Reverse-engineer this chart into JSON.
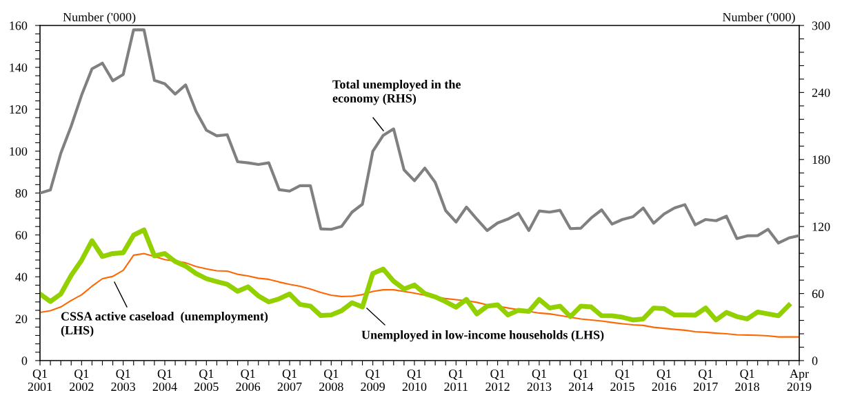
{
  "chart_data": {
    "type": "line",
    "ylabel": "Number ('000)",
    "y2label": "Number ('000)",
    "categories": [
      "Q1\n2001",
      null,
      null,
      null,
      "Q1\n2002",
      null,
      null,
      null,
      "Q1\n2003",
      null,
      null,
      null,
      "Q1\n2004",
      null,
      null,
      null,
      "Q1\n2005",
      null,
      null,
      null,
      "Q1\n2006",
      null,
      null,
      null,
      "Q1\n2007",
      null,
      null,
      null,
      "Q1\n2008",
      null,
      null,
      null,
      "Q1\n2009",
      null,
      null,
      null,
      "Q1\n2010",
      null,
      null,
      null,
      "Q1\n2011",
      null,
      null,
      null,
      "Q1\n2012",
      null,
      null,
      null,
      "Q1\n2013",
      null,
      null,
      null,
      "Q1\n2014",
      null,
      null,
      null,
      "Q1\n2015",
      null,
      null,
      null,
      "Q1\n2016",
      null,
      null,
      null,
      "Q1\n2017",
      null,
      null,
      null,
      "Q1\n2018",
      null,
      null,
      null,
      null,
      "Apr\n2019"
    ],
    "series": [
      {
        "name": "Total unemployed in the\neconomy (RHS)",
        "color": "#808080",
        "axis": "y2",
        "values": [
          149.9,
          152.8,
          185.6,
          209.9,
          237.6,
          261.2,
          266.3,
          250.5,
          256.1,
          296.1,
          296.1,
          250.9,
          247.8,
          238.6,
          246.8,
          223.2,
          206.2,
          201.2,
          202.2,
          178.0,
          177.0,
          175.6,
          177.0,
          153.0,
          151.7,
          156.5,
          156.5,
          117.9,
          117.5,
          120.1,
          132.9,
          140.0,
          187.3,
          201.6,
          207.4,
          170.8,
          161.0,
          172.3,
          159.5,
          134.3,
          124.0,
          137.4,
          126.7,
          116.4,
          123.2,
          126.7,
          131.8,
          116.4,
          133.9,
          132.9,
          134.5,
          118.1,
          118.5,
          127.7,
          134.9,
          122.2,
          126.3,
          128.7,
          136.6,
          123.0,
          131.2,
          136.6,
          139.6,
          121.5,
          126.3,
          125.2,
          129.2,
          109.2,
          111.7,
          111.9,
          117.5,
          105.2,
          109.8,
          111.9
        ]
      },
      {
        "name": "Unemployed in low-income households (LHS)",
        "color": "#92d000",
        "values": [
          31.8,
          28.2,
          31.8,
          40.7,
          47.9,
          57.2,
          49.7,
          51.1,
          51.5,
          59.9,
          62.4,
          50.0,
          51.1,
          47.3,
          45.1,
          41.6,
          39.1,
          37.7,
          36.4,
          33.1,
          35.2,
          30.9,
          28.0,
          29.5,
          31.8,
          26.8,
          26.0,
          21.5,
          21.8,
          23.8,
          27.6,
          25.6,
          41.6,
          43.7,
          37.9,
          34.2,
          36.1,
          32.0,
          30.4,
          28.1,
          25.5,
          29.2,
          22.3,
          26.0,
          26.6,
          21.8,
          24.0,
          23.5,
          29.2,
          25.1,
          26.0,
          21.0,
          26.0,
          25.6,
          21.4,
          21.4,
          20.7,
          19.4,
          19.9,
          25.1,
          24.8,
          21.8,
          21.8,
          21.7,
          25.1,
          19.4,
          23.0,
          21.0,
          19.9,
          23.2,
          22.3,
          21.4,
          26.4,
          null
        ]
      },
      {
        "name": "CSSA active caseload  (unemployment)\n(LHS)",
        "color": "#ff6600",
        "values": [
          23.0,
          23.8,
          25.6,
          28.7,
          31.4,
          35.5,
          39.1,
          40.2,
          43.1,
          50.3,
          51.1,
          49.7,
          48.2,
          47.5,
          46.7,
          44.9,
          43.8,
          42.9,
          42.7,
          41.2,
          40.4,
          39.3,
          38.8,
          37.5,
          36.4,
          35.5,
          34.2,
          32.5,
          31.2,
          30.6,
          30.7,
          31.5,
          33.0,
          33.8,
          33.8,
          33.0,
          32.2,
          31.2,
          30.6,
          29.6,
          29.1,
          28.6,
          27.8,
          26.6,
          26.0,
          25.1,
          24.3,
          23.5,
          22.7,
          22.3,
          21.5,
          20.7,
          19.9,
          19.4,
          18.9,
          18.2,
          17.6,
          17.1,
          16.8,
          15.9,
          15.4,
          14.9,
          14.5,
          13.8,
          13.5,
          13.1,
          12.8,
          12.3,
          12.2,
          12.1,
          11.8,
          11.3,
          11.3,
          11.3
        ]
      }
    ],
    "ylim": [
      0,
      160
    ],
    "yticks": [
      0,
      {
        "value": 4,
        "label": null
      },
      {
        "value": 8,
        "label": null
      },
      {
        "value": 12,
        "label": null
      },
      {
        "value": 16,
        "label": null
      },
      20,
      {
        "value": 24,
        "label": null
      },
      {
        "value": 28,
        "label": null
      },
      {
        "value": 32,
        "label": null
      },
      {
        "value": 36,
        "label": null
      },
      40,
      {
        "value": 44,
        "label": null
      },
      {
        "value": 48,
        "label": null
      },
      {
        "value": 52,
        "label": null
      },
      {
        "value": 56,
        "label": null
      },
      60,
      {
        "value": 64,
        "label": null
      },
      {
        "value": 68,
        "label": null
      },
      {
        "value": 72,
        "label": null
      },
      {
        "value": 76,
        "label": null
      },
      80,
      {
        "value": 84,
        "label": null
      },
      {
        "value": 88,
        "label": null
      },
      {
        "value": 92,
        "label": null
      },
      {
        "value": 96,
        "label": null
      },
      100,
      {
        "value": 104,
        "label": null
      },
      {
        "value": 108,
        "label": null
      },
      {
        "value": 112,
        "label": null
      },
      {
        "value": 116,
        "label": null
      },
      120,
      {
        "value": 124,
        "label": null
      },
      {
        "value": 128,
        "label": null
      },
      {
        "value": 132,
        "label": null
      },
      {
        "value": 136,
        "label": null
      },
      140,
      {
        "value": 144,
        "label": null
      },
      {
        "value": 148,
        "label": null
      },
      {
        "value": 152,
        "label": null
      },
      {
        "value": 156,
        "label": null
      },
      160
    ],
    "y2lim": [
      0,
      300
    ],
    "y2ticks": [
      0,
      {
        "value": 12,
        "label": null
      },
      {
        "value": 24,
        "label": null
      },
      {
        "value": 36,
        "label": null
      },
      {
        "value": 48,
        "label": null
      },
      60,
      {
        "value": 72,
        "label": null
      },
      {
        "value": 84,
        "label": null
      },
      {
        "value": 96,
        "label": null
      },
      {
        "value": 108,
        "label": null
      },
      120,
      {
        "value": 132,
        "label": null
      },
      {
        "value": 144,
        "label": null
      },
      {
        "value": 156,
        "label": null
      },
      {
        "value": 168,
        "label": null
      },
      180,
      {
        "value": 192,
        "label": null
      },
      {
        "value": 204,
        "label": null
      },
      {
        "value": 216,
        "label": null
      },
      {
        "value": 228,
        "label": null
      },
      240,
      {
        "value": 252,
        "label": null
      },
      {
        "value": 264,
        "label": null
      },
      {
        "value": 276,
        "label": null
      },
      {
        "value": 288,
        "label": null
      },
      300
    ],
    "grid": false,
    "legend": false,
    "marker": "none",
    "line_style": "solid"
  }
}
